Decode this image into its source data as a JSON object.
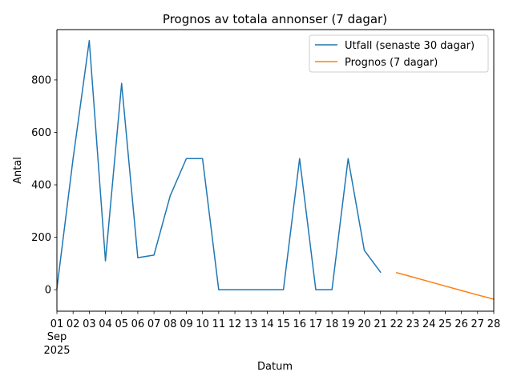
{
  "chart_data": {
    "type": "line",
    "title": "Prognos av totala annonser (7 dagar)",
    "xlabel": "Datum",
    "ylabel": "Antal",
    "x_axis": {
      "first_tick_extra_lines": [
        "Sep",
        "2025"
      ],
      "tick_labels": [
        "01",
        "02",
        "03",
        "04",
        "05",
        "06",
        "07",
        "08",
        "09",
        "10",
        "11",
        "12",
        "13",
        "14",
        "15",
        "16",
        "17",
        "18",
        "19",
        "20",
        "21",
        "22",
        "23",
        "24",
        "25",
        "26",
        "27",
        "28"
      ],
      "range_days": [
        1,
        28
      ]
    },
    "ylim": [
      -82,
      992
    ],
    "y_ticks": [
      0,
      200,
      400,
      600,
      800
    ],
    "grid": false,
    "legend_position": "upper right",
    "series": [
      {
        "name": "Utfall (senaste 30 dagar)",
        "color": "#1f77b4",
        "x": [
          "2025-09-01",
          "2025-09-02",
          "2025-09-03",
          "2025-09-04",
          "2025-09-05",
          "2025-09-06",
          "2025-09-07",
          "2025-09-08",
          "2025-09-09",
          "2025-09-10",
          "2025-09-11",
          "2025-09-12",
          "2025-09-13",
          "2025-09-14",
          "2025-09-15",
          "2025-09-16",
          "2025-09-17",
          "2025-09-18",
          "2025-09-19",
          "2025-09-20",
          "2025-09-21"
        ],
        "y": [
          5,
          500,
          950,
          110,
          787,
          122,
          132,
          358,
          500,
          500,
          0,
          0,
          0,
          0,
          0,
          500,
          0,
          0,
          500,
          150,
          67
        ]
      },
      {
        "name": "Prognos (7 dagar)",
        "color": "#ff7f0e",
        "x": [
          "2025-09-22",
          "2025-09-23",
          "2025-09-24",
          "2025-09-25",
          "2025-09-26",
          "2025-09-27",
          "2025-09-28"
        ],
        "y": [
          65,
          48,
          31,
          14,
          -3,
          -20,
          -36
        ]
      }
    ]
  }
}
